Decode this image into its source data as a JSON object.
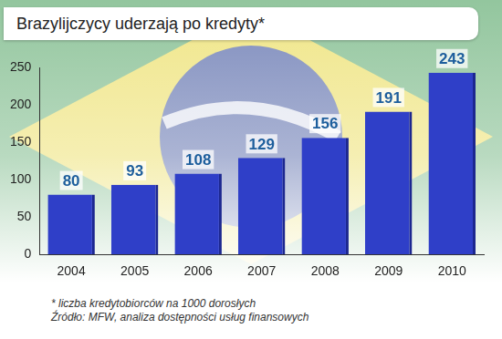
{
  "chart_data": {
    "type": "bar",
    "title": "Brazylijczycy uderzają po kredyty*",
    "categories": [
      "2004",
      "2005",
      "2006",
      "2007",
      "2008",
      "2009",
      "2010"
    ],
    "values": [
      80,
      93,
      108,
      129,
      156,
      191,
      243
    ],
    "color": "#2f3fc8",
    "ylim": [
      0,
      250
    ],
    "yticks": [
      0,
      50,
      100,
      150,
      200,
      250
    ],
    "grid": false,
    "data_labels": true,
    "notes": [
      "* liczba kredytobiorców na 1000 dorosłych",
      "Źródło: MFW, analiza dostępności usług finansowych"
    ]
  }
}
